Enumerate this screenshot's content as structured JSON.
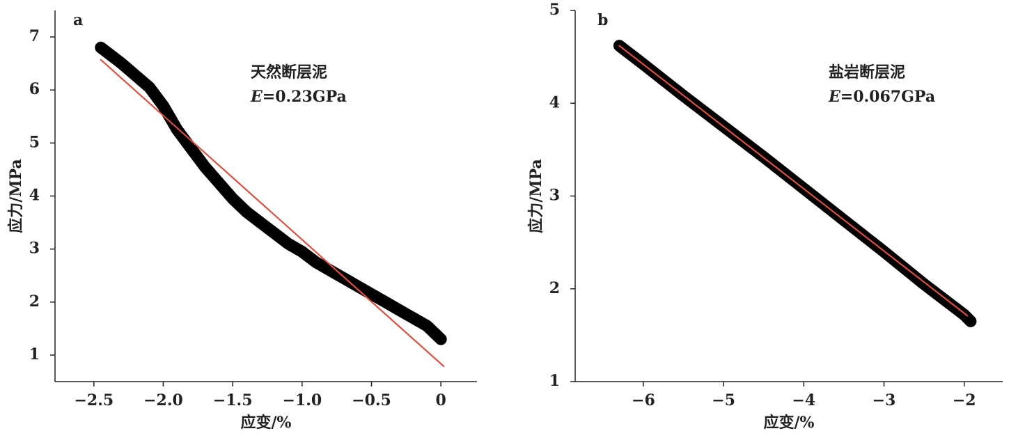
{
  "chart_data": [
    {
      "type": "line",
      "panel_label": "a",
      "annotation": "天然断层泥",
      "modulus_symbol": "E",
      "modulus_text": "=0.23GPa",
      "xlabel": "应变/%",
      "ylabel": "应力/MPa",
      "xlim": [
        -2.78,
        0.26
      ],
      "ylim": [
        0.5,
        7.5
      ],
      "xticks": [
        {
          "value": -2.5,
          "label": "−2.5"
        },
        {
          "value": -2,
          "label": "−2.0"
        },
        {
          "value": -1.5,
          "label": "−1.5"
        },
        {
          "value": -1,
          "label": "−1.0"
        },
        {
          "value": -0.5,
          "label": "−0.5"
        },
        0
      ],
      "yticks": [
        1,
        2,
        3,
        4,
        5,
        6,
        7
      ],
      "series": [
        {
          "color": "#000000",
          "x": [
            -2.45,
            -2.3,
            -2.1,
            -2.0,
            -1.9,
            -1.8,
            -1.7,
            -1.6,
            -1.5,
            -1.4,
            -1.3,
            -1.2,
            -1.1,
            -1.0,
            -0.9,
            -0.8,
            -0.7,
            -0.6,
            -0.5,
            -0.4,
            -0.3,
            -0.2,
            -0.1,
            0.0
          ],
          "values": [
            6.8,
            6.5,
            6.05,
            5.7,
            5.25,
            4.9,
            4.55,
            4.25,
            3.95,
            3.7,
            3.5,
            3.3,
            3.1,
            2.95,
            2.75,
            2.6,
            2.45,
            2.3,
            2.15,
            2.0,
            1.85,
            1.7,
            1.55,
            1.3
          ]
        },
        {
          "color": "#d9503f",
          "x": [
            -2.45,
            0.02
          ],
          "values": [
            6.57,
            0.79
          ]
        }
      ]
    },
    {
      "type": "line",
      "panel_label": "b",
      "annotation": "盐岩断层泥",
      "modulus_symbol": "E",
      "modulus_text": "=0.067GPa",
      "xlabel": "应变/%",
      "ylabel": "应力/MPa",
      "xlim": [
        -6.85,
        -1.52
      ],
      "ylim": [
        1,
        5
      ],
      "xticks": [
        {
          "value": -6,
          "label": "−6"
        },
        {
          "value": -5,
          "label": "−5"
        },
        {
          "value": -4,
          "label": "−4"
        },
        {
          "value": -3,
          "label": "−3"
        },
        {
          "value": -2,
          "label": "−2"
        }
      ],
      "yticks": [
        1,
        2,
        3,
        4,
        5
      ],
      "series": [
        {
          "color": "#000000",
          "x": [
            -6.3,
            -6.0,
            -5.5,
            -5.0,
            -4.5,
            -4.0,
            -3.5,
            -3.0,
            -2.5,
            -2.0,
            -1.92
          ],
          "values": [
            4.62,
            4.42,
            4.08,
            3.75,
            3.42,
            3.08,
            2.74,
            2.4,
            2.05,
            1.72,
            1.65
          ]
        },
        {
          "color": "#d9503f",
          "x": [
            -6.3,
            -1.96
          ],
          "values": [
            4.62,
            1.71
          ]
        }
      ]
    }
  ]
}
